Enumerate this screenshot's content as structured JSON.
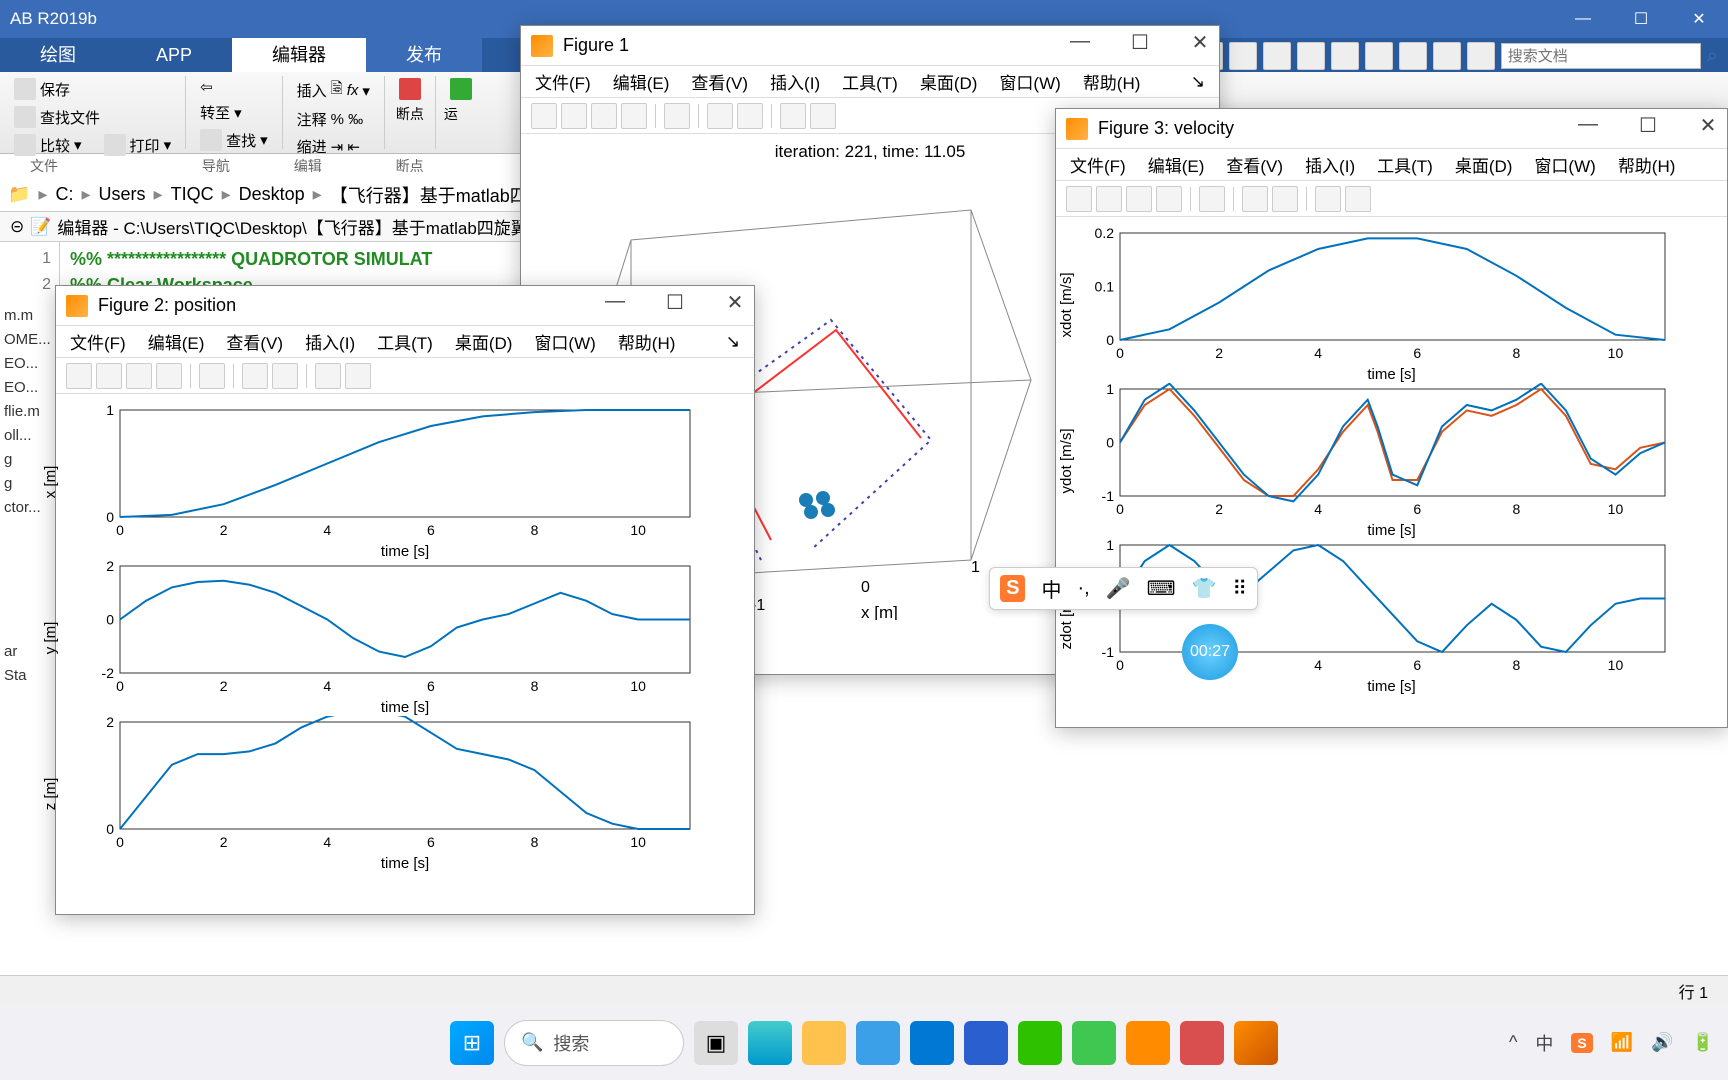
{
  "app": {
    "title": "AB R2019b"
  },
  "ribbon": {
    "tabs": [
      "绘图",
      "APP",
      "编辑器",
      "发布"
    ],
    "active_index": 2,
    "groups": {
      "file": {
        "save": "保存",
        "find_files": "查找文件",
        "compare": "比较",
        "print": "打印",
        "label": "文件"
      },
      "nav": {
        "goto": "转至",
        "find": "查找",
        "label": "导航"
      },
      "edit": {
        "insert": "插入",
        "comment": "注释",
        "indent": "缩进",
        "fx": "fx",
        "label": "编辑"
      },
      "bp": {
        "bp": "断点",
        "label": "断点"
      },
      "run": {
        "run": "运"
      }
    },
    "quick": {
      "search_placeholder": "搜索文档"
    }
  },
  "breadcrumb": [
    "C:",
    "Users",
    "TIQC",
    "Desktop",
    "【飞行器】基于matlab四旋"
  ],
  "editor": {
    "header": "编辑器 - C:\\Users\\TIQC\\Desktop\\【飞行器】基于matlab四旋翼无",
    "lines": [
      {
        "n": "1",
        "text": "%% ***************** QUADROTOR SIMULAT"
      },
      {
        "n": "2",
        "text": "%% Clear Workspace"
      }
    ]
  },
  "sidebar_files": [
    "m.m",
    "OME...",
    "EO...",
    "EO...",
    "flie.m",
    "oll...",
    "g",
    "g",
    "ctor...",
    "",
    "ar",
    "Sta"
  ],
  "figure1": {
    "title": "Figure 1",
    "menu": [
      "文件(F)",
      "编辑(E)",
      "查看(V)",
      "插入(I)",
      "工具(T)",
      "桌面(D)",
      "窗口(W)",
      "帮助(H)"
    ],
    "caption": "iteration: 221, time: 11.05",
    "xlabel": "x [m]",
    "x_ticks": [
      "-1",
      "0",
      "1"
    ],
    "trajectory_color": "#3f3fb0",
    "quad_color": "#1a7db6"
  },
  "figure2": {
    "title": "Figure 2:  position",
    "menu": [
      "文件(F)",
      "编辑(E)",
      "查看(V)",
      "插入(I)",
      "工具(T)",
      "桌面(D)",
      "窗口(W)",
      "帮助(H)"
    ],
    "plots": [
      {
        "ylabel": "x [m]",
        "xlabel": "time [s]",
        "xlim": [
          0,
          11
        ],
        "ylim": [
          0,
          1
        ],
        "xticks": [
          "0",
          "2",
          "4",
          "6",
          "8",
          "10"
        ],
        "yticks": [
          "0",
          "1"
        ],
        "data": [
          [
            0,
            0
          ],
          [
            1,
            0.02
          ],
          [
            2,
            0.12
          ],
          [
            3,
            0.3
          ],
          [
            4,
            0.5
          ],
          [
            5,
            0.7
          ],
          [
            6,
            0.85
          ],
          [
            7,
            0.94
          ],
          [
            8,
            0.98
          ],
          [
            9,
            1
          ],
          [
            10,
            1
          ],
          [
            11,
            1
          ]
        ]
      },
      {
        "ylabel": "y [m]",
        "xlabel": "time [s]",
        "xlim": [
          0,
          11
        ],
        "ylim": [
          -2,
          2
        ],
        "xticks": [
          "0",
          "2",
          "4",
          "6",
          "8",
          "10"
        ],
        "yticks": [
          "-2",
          "0",
          "2"
        ],
        "data": [
          [
            0,
            0
          ],
          [
            0.5,
            0.7
          ],
          [
            1,
            1.2
          ],
          [
            1.5,
            1.4
          ],
          [
            2,
            1.45
          ],
          [
            2.5,
            1.3
          ],
          [
            3,
            1
          ],
          [
            3.5,
            0.5
          ],
          [
            4,
            0
          ],
          [
            4.5,
            -0.7
          ],
          [
            5,
            -1.2
          ],
          [
            5.5,
            -1.4
          ],
          [
            6,
            -1
          ],
          [
            6.5,
            -0.3
          ],
          [
            7,
            0
          ],
          [
            7.5,
            0.2
          ],
          [
            8,
            0.6
          ],
          [
            8.5,
            1
          ],
          [
            9,
            0.7
          ],
          [
            9.5,
            0.2
          ],
          [
            10,
            0
          ],
          [
            11,
            0
          ]
        ]
      },
      {
        "ylabel": "z [m]",
        "xlabel": "time [s]",
        "xlim": [
          0,
          11
        ],
        "ylim": [
          0,
          2
        ],
        "xticks": [
          "0",
          "2",
          "4",
          "6",
          "8",
          "10"
        ],
        "yticks": [
          "0",
          "2"
        ],
        "data": [
          [
            0,
            0
          ],
          [
            0.5,
            0.6
          ],
          [
            1,
            1.2
          ],
          [
            1.5,
            1.4
          ],
          [
            2,
            1.4
          ],
          [
            2.5,
            1.45
          ],
          [
            3,
            1.6
          ],
          [
            3.5,
            1.9
          ],
          [
            4,
            2.1
          ],
          [
            4.5,
            2.2
          ],
          [
            5,
            2.2
          ],
          [
            5.5,
            2.1
          ],
          [
            6,
            1.8
          ],
          [
            6.5,
            1.5
          ],
          [
            7,
            1.4
          ],
          [
            7.5,
            1.3
          ],
          [
            8,
            1.1
          ],
          [
            8.5,
            0.7
          ],
          [
            9,
            0.3
          ],
          [
            9.5,
            0.1
          ],
          [
            10,
            0
          ],
          [
            11,
            0
          ]
        ]
      }
    ],
    "line_color": "#0072bd"
  },
  "figure3": {
    "title": "Figure 3:  velocity",
    "menu": [
      "文件(F)",
      "编辑(E)",
      "查看(V)",
      "插入(I)",
      "工具(T)",
      "桌面(D)",
      "窗口(W)",
      "帮助(H)"
    ],
    "plots": [
      {
        "ylabel": "xdot [m/s]",
        "xlabel": "time [s]",
        "xlim": [
          0,
          11
        ],
        "ylim": [
          0,
          0.2
        ],
        "xticks": [
          "0",
          "2",
          "4",
          "6",
          "8",
          "10"
        ],
        "yticks": [
          "0",
          "0.1",
          "0.2"
        ],
        "data": [
          [
            0,
            0
          ],
          [
            1,
            0.02
          ],
          [
            2,
            0.07
          ],
          [
            3,
            0.13
          ],
          [
            4,
            0.17
          ],
          [
            5,
            0.19
          ],
          [
            5.5,
            0.19
          ],
          [
            6,
            0.19
          ],
          [
            7,
            0.17
          ],
          [
            8,
            0.12
          ],
          [
            9,
            0.06
          ],
          [
            10,
            0.01
          ],
          [
            11,
            0
          ]
        ]
      },
      {
        "ylabel": "ydot [m/s]",
        "xlabel": "time [s]",
        "xlim": [
          0,
          11
        ],
        "ylim": [
          -1,
          1
        ],
        "xticks": [
          "0",
          "2",
          "4",
          "6",
          "8",
          "10"
        ],
        "yticks": [
          "-1",
          "0",
          "1"
        ],
        "data": [
          [
            0,
            0
          ],
          [
            0.5,
            0.8
          ],
          [
            1,
            1.1
          ],
          [
            1.5,
            0.6
          ],
          [
            2,
            0
          ],
          [
            2.5,
            -0.6
          ],
          [
            3,
            -1
          ],
          [
            3.5,
            -1.1
          ],
          [
            4,
            -0.6
          ],
          [
            4.5,
            0.3
          ],
          [
            5,
            0.8
          ],
          [
            5.2,
            0.3
          ],
          [
            5.5,
            -0.6
          ],
          [
            6,
            -0.8
          ],
          [
            6.5,
            0.3
          ],
          [
            7,
            0.7
          ],
          [
            7.5,
            0.6
          ],
          [
            8,
            0.8
          ],
          [
            8.5,
            1.1
          ],
          [
            9,
            0.6
          ],
          [
            9.5,
            -0.3
          ],
          [
            10,
            -0.6
          ],
          [
            10.5,
            -0.2
          ],
          [
            11,
            0
          ]
        ],
        "data2": [
          [
            0,
            0
          ],
          [
            0.5,
            0.7
          ],
          [
            1,
            1.0
          ],
          [
            1.5,
            0.5
          ],
          [
            2,
            -0.1
          ],
          [
            2.5,
            -0.7
          ],
          [
            3,
            -1.0
          ],
          [
            3.5,
            -1.0
          ],
          [
            4,
            -0.5
          ],
          [
            4.5,
            0.2
          ],
          [
            5,
            0.7
          ],
          [
            5.2,
            0.2
          ],
          [
            5.5,
            -0.7
          ],
          [
            6,
            -0.7
          ],
          [
            6.5,
            0.2
          ],
          [
            7,
            0.6
          ],
          [
            7.5,
            0.5
          ],
          [
            8,
            0.7
          ],
          [
            8.5,
            1.0
          ],
          [
            9,
            0.5
          ],
          [
            9.5,
            -0.4
          ],
          [
            10,
            -0.5
          ],
          [
            10.5,
            -0.1
          ],
          [
            11,
            0
          ]
        ]
      },
      {
        "ylabel": "zdot [m/s]",
        "xlabel": "time [s]",
        "xlim": [
          0,
          11
        ],
        "ylim": [
          -1,
          1
        ],
        "xticks": [
          "0",
          "2",
          "4",
          "6",
          "8",
          "10"
        ],
        "yticks": [
          "-1",
          "0",
          "1"
        ],
        "data": [
          [
            0,
            0
          ],
          [
            0.5,
            0.7
          ],
          [
            1,
            1
          ],
          [
            1.5,
            0.7
          ],
          [
            2,
            0.2
          ],
          [
            2.5,
            0.1
          ],
          [
            3,
            0.5
          ],
          [
            3.5,
            0.9
          ],
          [
            4,
            1
          ],
          [
            4.5,
            0.7
          ],
          [
            5,
            0.2
          ],
          [
            5.5,
            -0.3
          ],
          [
            6,
            -0.8
          ],
          [
            6.5,
            -1
          ],
          [
            7,
            -0.5
          ],
          [
            7.5,
            -0.1
          ],
          [
            8,
            -0.4
          ],
          [
            8.5,
            -0.9
          ],
          [
            9,
            -1
          ],
          [
            9.5,
            -0.5
          ],
          [
            10,
            -0.1
          ],
          [
            10.5,
            0
          ],
          [
            11,
            0
          ]
        ]
      }
    ],
    "line_color": "#0072bd",
    "line_color2": "#d95319"
  },
  "statusbar": {
    "cursor": "行  1"
  },
  "taskbar": {
    "search": "搜索",
    "icons": [
      "start",
      "search",
      "taskview",
      "edge",
      "files",
      "store",
      "mail",
      "office",
      "wechat",
      "ie360",
      "wx",
      "game",
      "matlab"
    ],
    "tray": [
      "^",
      "中",
      "wifi",
      "vol",
      "bat"
    ]
  },
  "ime": {
    "items": [
      "中",
      "·,",
      "🎤",
      "⌨",
      "👕",
      "⠿"
    ],
    "brand": "S"
  },
  "rec": {
    "t": "00:27"
  }
}
